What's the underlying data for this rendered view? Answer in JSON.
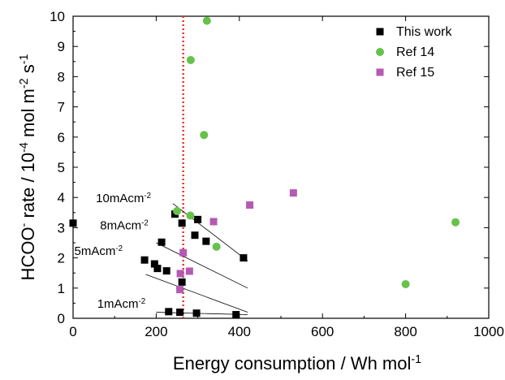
{
  "chart_data": {
    "type": "scatter",
    "xlabel": "Energy consumption / Wh mol",
    "xlabel_sup": "-1",
    "ylabel_parts": [
      "HCOO",
      "-",
      " rate / 10",
      "-4",
      " mol m",
      "-2",
      " s",
      "-1"
    ],
    "xlim": [
      0,
      1000
    ],
    "ylim": [
      0,
      10
    ],
    "x_ticks": [
      0,
      200,
      400,
      600,
      800,
      1000
    ],
    "y_ticks": [
      0,
      1,
      2,
      3,
      4,
      5,
      6,
      7,
      8,
      9,
      10
    ],
    "legend_position": "top-right",
    "series": [
      {
        "name": "This work",
        "marker": "square",
        "color": "#000000",
        "points": [
          [
            0,
            3.15
          ],
          [
            245,
            3.45
          ],
          [
            262,
            3.15
          ],
          [
            300,
            3.27
          ],
          [
            293,
            2.75
          ],
          [
            320,
            2.55
          ],
          [
            410,
            2.0
          ],
          [
            213,
            2.52
          ],
          [
            172,
            1.93
          ],
          [
            196,
            1.8
          ],
          [
            203,
            1.65
          ],
          [
            225,
            1.57
          ],
          [
            262,
            1.2
          ],
          [
            230,
            0.22
          ],
          [
            257,
            0.2
          ],
          [
            297,
            0.17
          ],
          [
            392,
            0.12
          ]
        ]
      },
      {
        "name": "Ref 14",
        "marker": "circle",
        "color": "#66c24a",
        "points": [
          [
            322,
            9.85
          ],
          [
            283,
            8.55
          ],
          [
            315,
            6.07
          ],
          [
            250,
            3.55
          ],
          [
            282,
            3.4
          ],
          [
            345,
            2.37
          ],
          [
            920,
            3.18
          ],
          [
            800,
            1.13
          ]
        ]
      },
      {
        "name": "Ref 15",
        "marker": "square",
        "color": "#b45ab0",
        "points": [
          [
            530,
            4.15
          ],
          [
            425,
            3.75
          ],
          [
            338,
            3.2
          ],
          [
            265,
            2.17
          ],
          [
            280,
            1.56
          ],
          [
            258,
            1.48
          ],
          [
            257,
            0.95
          ]
        ]
      }
    ],
    "fit_lines": [
      {
        "from": [
          240,
          3.8
        ],
        "to": [
          420,
          1.9
        ]
      },
      {
        "from": [
          200,
          2.5
        ],
        "to": [
          420,
          1.0
        ]
      },
      {
        "from": [
          175,
          1.45
        ],
        "to": [
          420,
          0.2
        ]
      },
      {
        "from": [
          200,
          0.2
        ],
        "to": [
          420,
          0.12
        ]
      }
    ],
    "reference_line": {
      "x": 265,
      "color": "#e03a2a",
      "style": "dotted"
    },
    "annotations": [
      {
        "text": "10mAcm",
        "sup": "-2",
        "x": 55,
        "y": 3.85
      },
      {
        "text": "8mAcm",
        "sup": "-2",
        "x": 65,
        "y": 2.95
      },
      {
        "text": "5mAcm",
        "sup": "-2",
        "x": 3,
        "y": 2.1
      },
      {
        "text": "1mAcm",
        "sup": "-2",
        "x": 58,
        "y": 0.35
      }
    ]
  }
}
